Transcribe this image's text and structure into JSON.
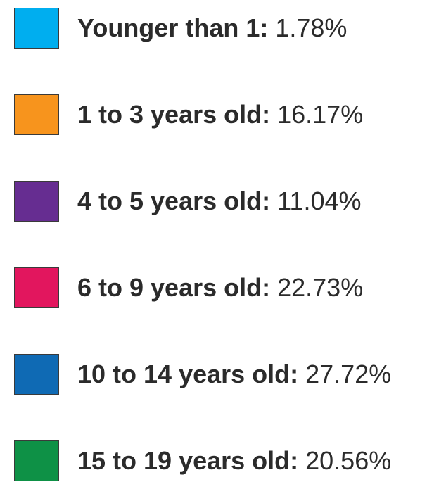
{
  "legend": {
    "items": [
      {
        "label": "Younger than 1:",
        "value": "1.78%",
        "color": "#00aeef"
      },
      {
        "label": "1 to 3 years old:",
        "value": "16.17%",
        "color": "#f7941d"
      },
      {
        "label": "4 to 5 years old:",
        "value": "11.04%",
        "color": "#662d91"
      },
      {
        "label": "6 to 9 years old:",
        "value": "22.73%",
        "color": "#e2165e"
      },
      {
        "label": "10 to 14 years old:",
        "value": "27.72%",
        "color": "#0f6ab4"
      },
      {
        "label": "15 to 19 years old:",
        "value": "20.56%",
        "color": "#0e9146"
      }
    ]
  }
}
